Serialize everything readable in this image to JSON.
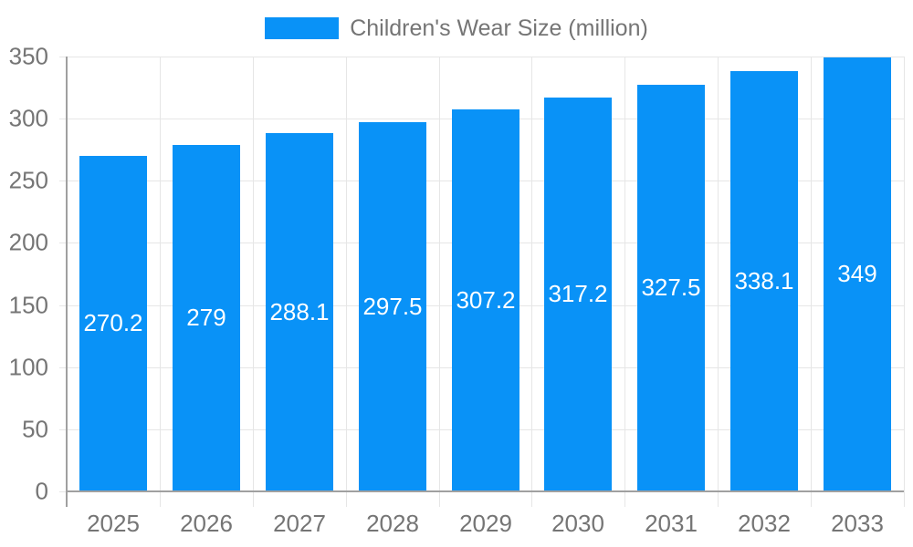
{
  "legend": {
    "label": "Children's Wear Size (million)"
  },
  "chart_data": {
    "type": "bar",
    "title": "Children's Wear Size (million)",
    "series_name": "Children's Wear Size (million)",
    "categories": [
      "2025",
      "2026",
      "2027",
      "2028",
      "2029",
      "2030",
      "2031",
      "2032",
      "2033"
    ],
    "values": [
      270.2,
      279,
      288.1,
      297.5,
      307.2,
      317.2,
      327.5,
      338.1,
      349
    ],
    "value_labels": [
      "270.2",
      "279",
      "288.1",
      "297.5",
      "307.2",
      "317.2",
      "327.5",
      "338.1",
      "349"
    ],
    "xlabel": "",
    "ylabel": "",
    "ylim": [
      0,
      350
    ],
    "yticks": [
      0,
      50,
      100,
      150,
      200,
      250,
      300,
      350
    ],
    "grid": true,
    "legend_position": "top-center",
    "colors": {
      "bar": "#0992f7",
      "grid": "#e6e6e6",
      "axis_line": "#a0a0a0",
      "tick_text": "#757575",
      "legend_text": "#757575",
      "value_label_text": "#ffffff",
      "background": "#ffffff"
    }
  }
}
